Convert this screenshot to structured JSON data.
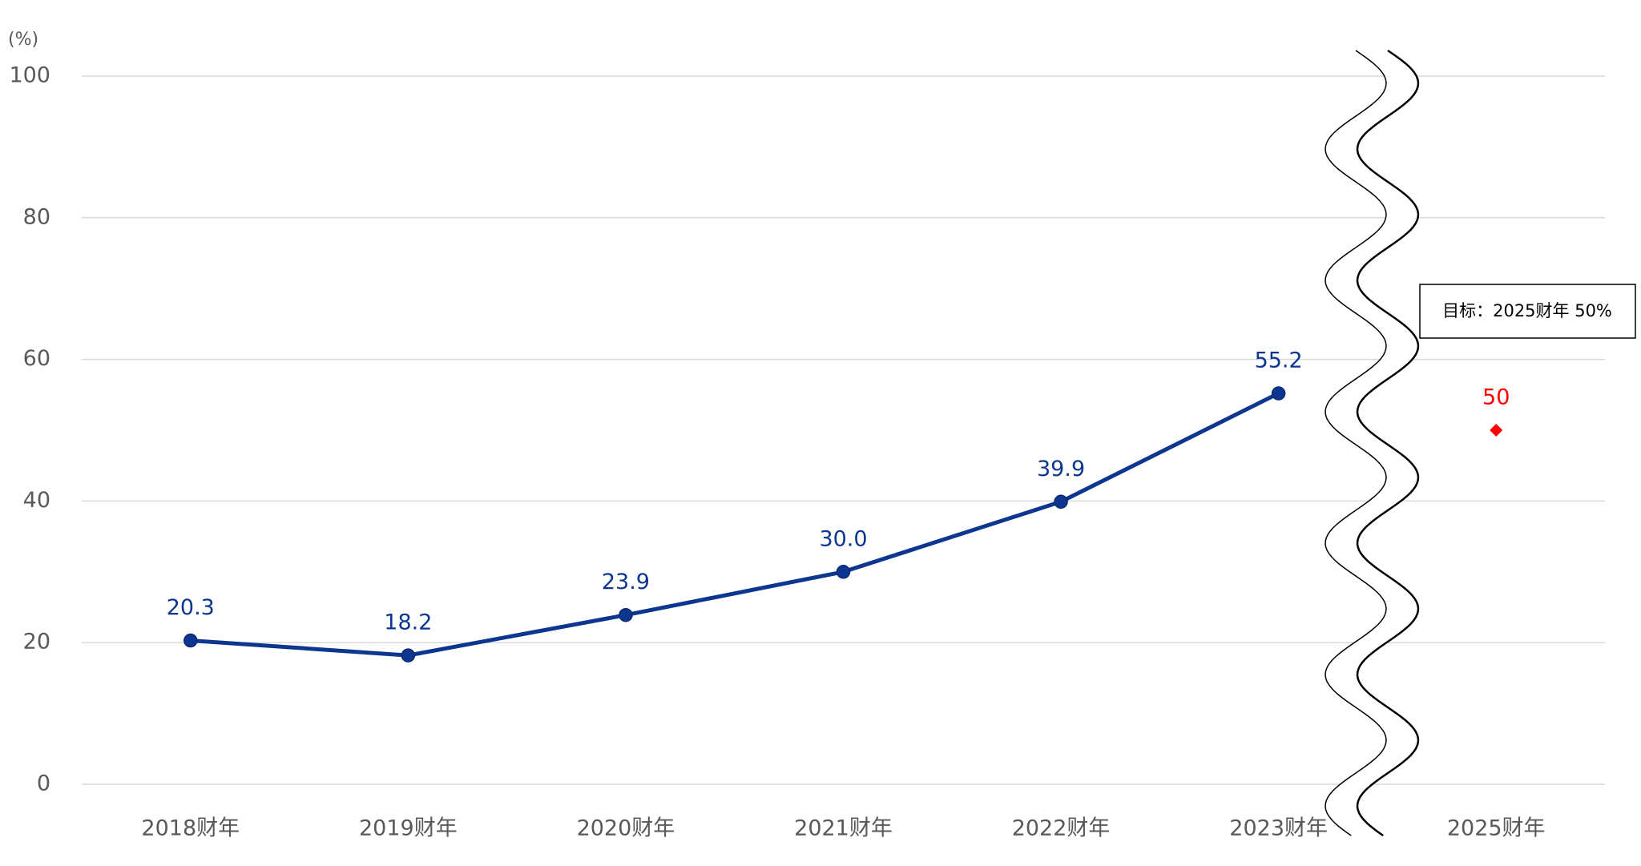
{
  "chart_data": {
    "type": "line",
    "y_axis_label": "(%)",
    "categories": [
      "2018财年",
      "2019财年",
      "2020财年",
      "2021财年",
      "2022财年",
      "2023财年",
      "2025财年"
    ],
    "series": [
      {
        "color": "#0d3690",
        "values": [
          20.3,
          18.2,
          23.9,
          30.0,
          39.9,
          55.2,
          null
        ],
        "value_labels": [
          "20.3",
          "18.2",
          "23.9",
          "30.0",
          "39.9",
          "55.2",
          null
        ]
      },
      {
        "color": "#ff0000",
        "marker": "diamond",
        "values": [
          null,
          null,
          null,
          null,
          null,
          null,
          50
        ]
      }
    ],
    "annotation": "目标：2025财年 50%",
    "ylim": [
      0,
      100
    ],
    "yticks": [
      0,
      20,
      40,
      60,
      80,
      100
    ],
    "grid": true
  }
}
